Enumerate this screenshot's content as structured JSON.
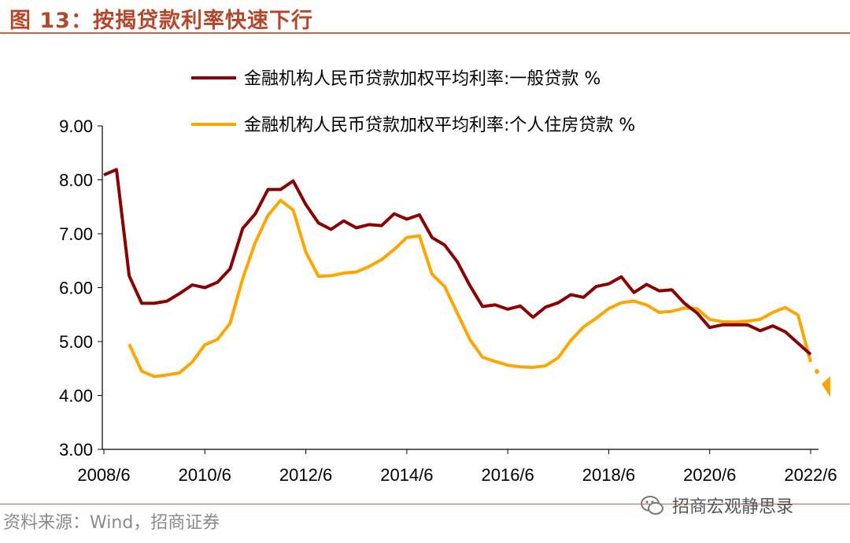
{
  "header": {
    "title": "图 13：按揭贷款利率快速下行"
  },
  "footer": {
    "source": "资料来源：Wind，招商证券",
    "watermark": "招商宏观静思录"
  },
  "colors": {
    "series1": "#8b0000",
    "series2": "#ffa500",
    "title": "#b7472a"
  },
  "chart_data": {
    "type": "line",
    "ylim": [
      3.0,
      9.0
    ],
    "yticks": [
      "3.00",
      "4.00",
      "5.00",
      "6.00",
      "7.00",
      "8.00",
      "9.00"
    ],
    "xticks": [
      "2008/6",
      "2010/6",
      "2012/6",
      "2014/6",
      "2016/6",
      "2018/6",
      "2020/6",
      "2022/6"
    ],
    "x_start": "2008/6",
    "legend_position": "top",
    "series": [
      {
        "name": "金融机构人民币贷款加权平均利率:一般贷款 %",
        "values": [
          8.09,
          8.19,
          6.22,
          5.71,
          5.71,
          5.75,
          5.89,
          6.05,
          6.0,
          6.1,
          6.35,
          7.1,
          7.37,
          7.82,
          7.82,
          7.98,
          7.54,
          7.2,
          7.08,
          7.24,
          7.11,
          7.17,
          7.15,
          7.37,
          7.27,
          7.35,
          6.93,
          6.79,
          6.48,
          6.04,
          5.65,
          5.68,
          5.6,
          5.66,
          5.45,
          5.64,
          5.72,
          5.87,
          5.82,
          6.02,
          6.07,
          6.2,
          5.91,
          6.06,
          5.94,
          5.96,
          5.71,
          5.53,
          5.26,
          5.31,
          5.31,
          5.31,
          5.2,
          5.29,
          5.18,
          4.97,
          4.76
        ]
      },
      {
        "name": "金融机构人民币贷款加权平均利率:个人住房贷款 %",
        "values": [
          null,
          null,
          4.95,
          4.45,
          4.35,
          4.38,
          4.42,
          4.62,
          4.94,
          5.04,
          5.34,
          6.17,
          6.84,
          7.34,
          7.62,
          7.44,
          6.66,
          6.21,
          6.22,
          6.27,
          6.29,
          6.39,
          6.52,
          6.71,
          6.93,
          6.96,
          6.25,
          6.02,
          5.53,
          5.04,
          4.71,
          4.63,
          4.56,
          4.53,
          4.52,
          4.55,
          4.7,
          5.02,
          5.27,
          5.43,
          5.61,
          5.72,
          5.75,
          5.68,
          5.54,
          5.56,
          5.62,
          5.61,
          5.41,
          5.37,
          5.36,
          5.38,
          5.41,
          5.54,
          5.63,
          5.49,
          4.62
        ]
      }
    ]
  }
}
